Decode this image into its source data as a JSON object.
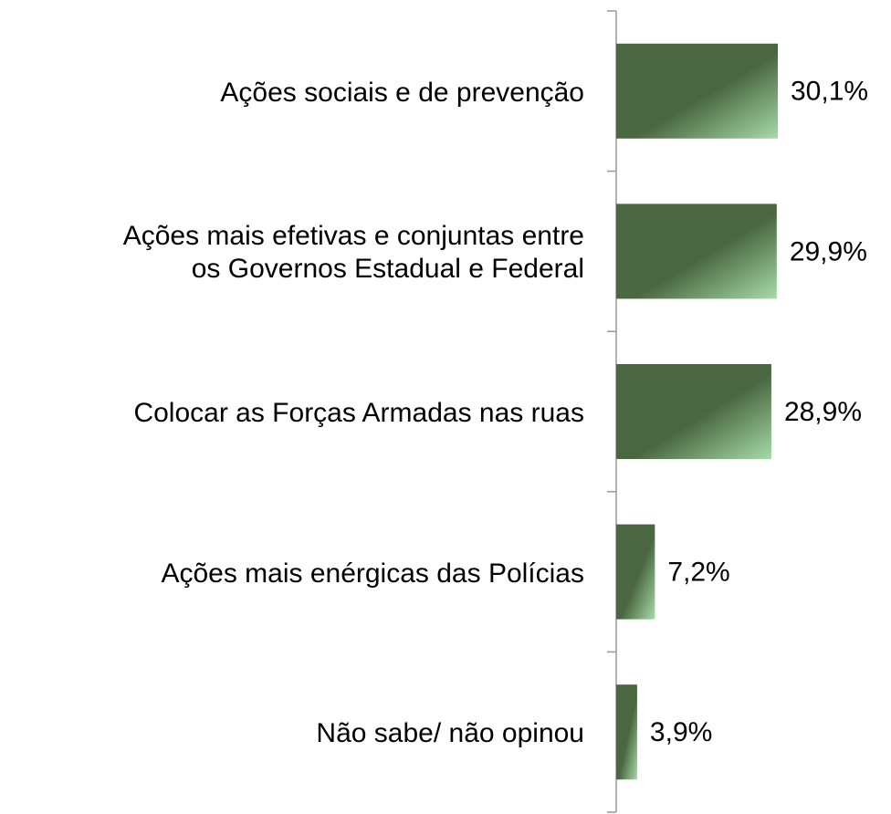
{
  "chart_data": {
    "type": "bar",
    "orientation": "horizontal",
    "categories": [
      "Ações sociais e de prevenção",
      "Ações mais efetivas e conjuntas entre\nos Governos Estadual e Federal",
      "Colocar as Forças Armadas nas ruas",
      "Ações mais enérgicas das Polícias",
      "Não sabe/ não opinou"
    ],
    "values": [
      30.1,
      29.9,
      28.9,
      7.2,
      3.9
    ],
    "value_labels": [
      "30,1%",
      "29,9%",
      "28,9%",
      "7,2%",
      "3,9%"
    ],
    "color": "#4a6741"
  }
}
